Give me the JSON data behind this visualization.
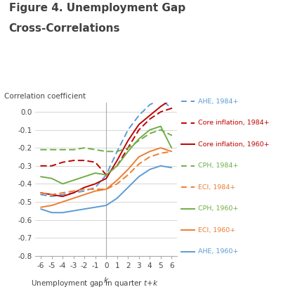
{
  "title_line1": "Figure 4. Unemployment Gap",
  "title_line2": "Cross-Correlations",
  "ylabel": "Correlation coefficient",
  "k": [
    -6,
    -5,
    -4,
    -3,
    -2,
    -1,
    0,
    1,
    2,
    3,
    4,
    5,
    6
  ],
  "series": {
    "AHE_1984_plus": {
      "label": "AHE, 1984+",
      "color": "#5b9bd5",
      "linestyle": "dashed",
      "values": [
        -0.46,
        -0.47,
        -0.46,
        -0.45,
        -0.44,
        -0.42,
        -0.35,
        -0.22,
        -0.1,
        -0.02,
        0.04,
        0.07,
        0.02
      ]
    },
    "Core_inflation_1984_plus": {
      "label": "Core inflation, 1984+",
      "color": "#c00000",
      "linestyle": "dashed",
      "values": [
        -0.3,
        -0.3,
        -0.28,
        -0.27,
        -0.27,
        -0.28,
        -0.35,
        -0.3,
        -0.2,
        -0.1,
        -0.04,
        0.0,
        0.02
      ]
    },
    "Core_inflation_1960_plus": {
      "label": "Core inflation, 1960+",
      "color": "#c00000",
      "linestyle": "solid",
      "values": [
        -0.45,
        -0.46,
        -0.47,
        -0.45,
        -0.42,
        -0.4,
        -0.37,
        -0.27,
        -0.16,
        -0.07,
        -0.02,
        0.03,
        0.07
      ]
    },
    "CPH_1984_plus": {
      "label": "CPH, 1984+",
      "color": "#70ad47",
      "linestyle": "dashed",
      "values": [
        -0.21,
        -0.21,
        -0.21,
        -0.21,
        -0.2,
        -0.21,
        -0.22,
        -0.22,
        -0.2,
        -0.16,
        -0.12,
        -0.1,
        -0.13
      ]
    },
    "ECI_1984_plus": {
      "label": "ECI, 1984+",
      "color": "#ed7d31",
      "linestyle": "dashed",
      "values": [
        -0.45,
        -0.46,
        -0.45,
        -0.44,
        -0.43,
        -0.43,
        -0.43,
        -0.4,
        -0.35,
        -0.29,
        -0.25,
        -0.23,
        -0.22
      ]
    },
    "CPH_1960_plus": {
      "label": "CPH, 1960+",
      "color": "#70ad47",
      "linestyle": "solid",
      "values": [
        -0.36,
        -0.37,
        -0.4,
        -0.38,
        -0.36,
        -0.34,
        -0.35,
        -0.3,
        -0.22,
        -0.15,
        -0.1,
        -0.08,
        -0.2
      ]
    },
    "ECI_1960_plus": {
      "label": "ECI, 1960+",
      "color": "#ed7d31",
      "linestyle": "solid",
      "values": [
        -0.53,
        -0.52,
        -0.5,
        -0.48,
        -0.46,
        -0.44,
        -0.43,
        -0.38,
        -0.32,
        -0.25,
        -0.22,
        -0.2,
        -0.22
      ]
    },
    "AHE_1960_plus": {
      "label": "AHE, 1960+",
      "color": "#5b9bd5",
      "linestyle": "solid",
      "values": [
        -0.54,
        -0.56,
        -0.56,
        -0.55,
        -0.54,
        -0.53,
        -0.52,
        -0.48,
        -0.42,
        -0.36,
        -0.32,
        -0.3,
        -0.31
      ]
    }
  },
  "ylim": [
    -0.8,
    0.05
  ],
  "yticks": [
    0.0,
    -0.1,
    -0.2,
    -0.3,
    -0.4,
    -0.5,
    -0.6,
    -0.7,
    -0.8
  ],
  "background_color": "#ffffff",
  "grid_color": "#d0d0d0",
  "legend_order": [
    "AHE_1984_plus",
    "Core_inflation_1984_plus",
    "Core_inflation_1960_plus",
    "CPH_1984_plus",
    "ECI_1984_plus",
    "CPH_1960_plus",
    "ECI_1960_plus",
    "AHE_1960_plus"
  ]
}
